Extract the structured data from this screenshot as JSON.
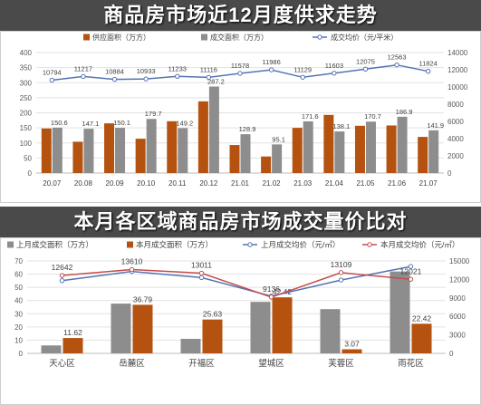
{
  "colors": {
    "header_background": "#4a4a4a",
    "header_text": "#ffffff"
  },
  "chart_data": [
    {
      "type": "bar",
      "title": "商品房市场近12月度供求走势",
      "categories": [
        "20.07",
        "20.08",
        "20.09",
        "20.10",
        "20.11",
        "20.12",
        "21.01",
        "21.02",
        "21.03",
        "21.04",
        "21.05",
        "21.06",
        "21.07"
      ],
      "left_axis": {
        "min": 0,
        "max": 400,
        "ticks": [
          0,
          50,
          100,
          150,
          200,
          250,
          300,
          350,
          400
        ]
      },
      "right_axis": {
        "min": 0,
        "max": 14000,
        "ticks": [
          0,
          2000,
          4000,
          6000,
          8000,
          10000,
          12000,
          14000
        ]
      },
      "series": [
        {
          "name": "供应面积（万方）",
          "type": "bar",
          "axis": "left",
          "color": "#b5520f",
          "values": [
            148,
            104,
            165,
            114,
            172,
            238,
            93,
            55,
            150,
            193,
            157,
            158,
            120
          ]
        },
        {
          "name": "成交面积（万方）",
          "type": "bar",
          "axis": "left",
          "color": "#8d8d8d",
          "data_labels": true,
          "values": [
            150.6,
            147.1,
            150.1,
            179.7,
            149.2,
            287.2,
            128.9,
            95.1,
            171.6,
            138.1,
            170.7,
            186.9,
            141.9
          ]
        },
        {
          "name": "成交均价（元/平米）",
          "type": "line",
          "axis": "right",
          "color": "#5573b4",
          "data_labels": true,
          "values": [
            10794,
            11217,
            10884,
            10933,
            11233,
            11116,
            11578,
            11986,
            11129,
            11603,
            12075,
            12563,
            11824
          ]
        }
      ],
      "legend": "top",
      "grid": true
    },
    {
      "type": "bar",
      "title": "本月各区域商品房市场成交量价比对",
      "categories": [
        "天心区",
        "岳麓区",
        "开福区",
        "望城区",
        "芙蓉区",
        "雨花区"
      ],
      "left_axis": {
        "min": 0,
        "max": 70,
        "ticks": [
          0,
          10,
          20,
          30,
          40,
          50,
          60,
          70
        ]
      },
      "right_axis": {
        "min": 0,
        "max": 15000,
        "ticks": [
          0,
          3000,
          6000,
          9000,
          12000,
          15000
        ]
      },
      "series": [
        {
          "name": "上月成交面积（万方）",
          "type": "bar",
          "axis": "left",
          "color": "#8d8d8d",
          "values": [
            6,
            37.7,
            11,
            39,
            33.5,
            62
          ]
        },
        {
          "name": "本月成交面积（万方）",
          "type": "bar",
          "axis": "left",
          "color": "#b5520f",
          "data_labels": true,
          "values": [
            11.62,
            36.79,
            25.63,
            42.42,
            3.07,
            22.42
          ]
        },
        {
          "name": "上月成交均价（元/㎡）",
          "type": "line",
          "axis": "right",
          "color": "#5573b4",
          "values": [
            11800,
            13300,
            12300,
            9300,
            11900,
            14100
          ]
        },
        {
          "name": "本月成交均价（元/㎡）",
          "type": "line",
          "axis": "right",
          "color": "#c24d4d",
          "data_labels": true,
          "values": [
            12642,
            13610,
            13011,
            9136,
            13109,
            12021
          ]
        }
      ],
      "legend": "top",
      "grid": true
    }
  ]
}
